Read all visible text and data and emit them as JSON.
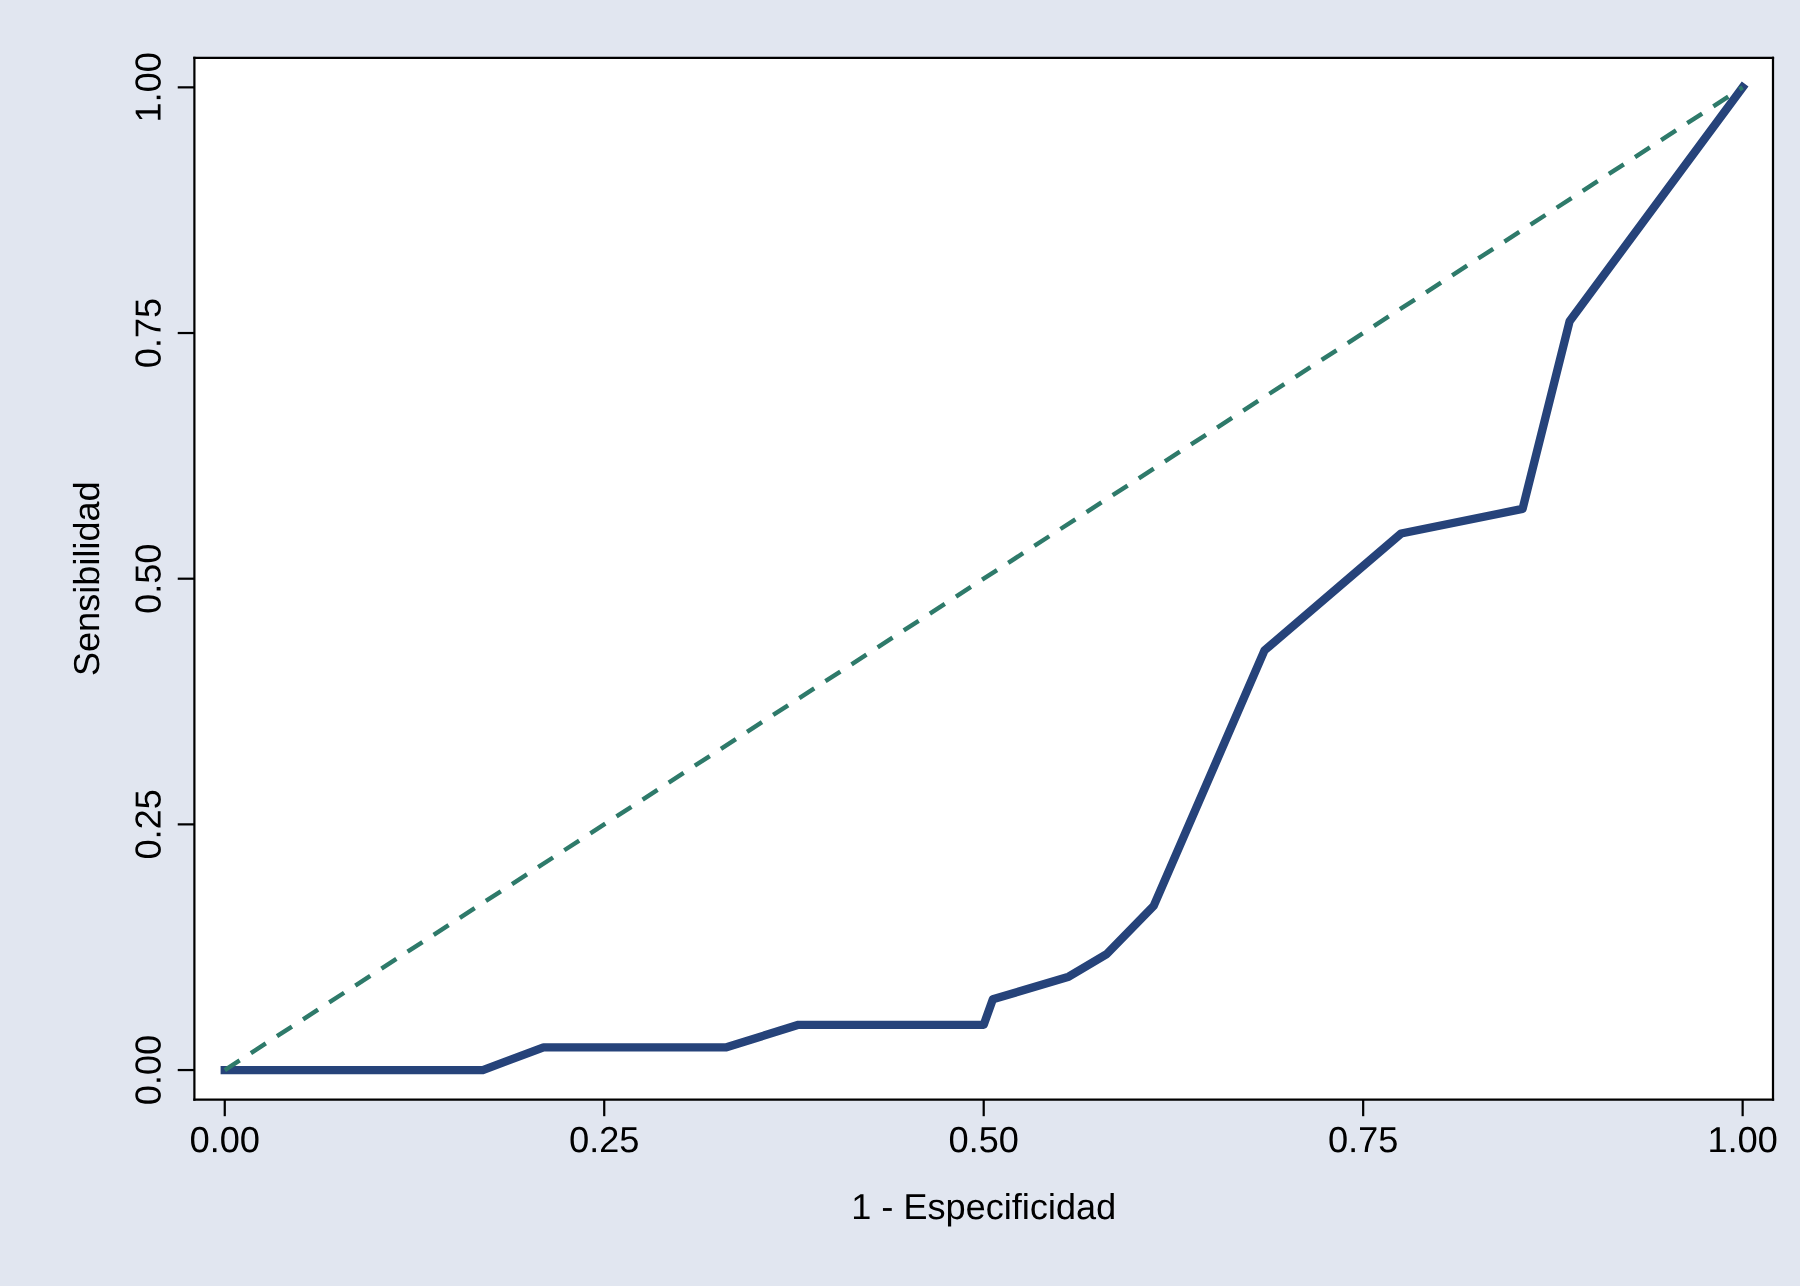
{
  "chart_data": {
    "type": "line",
    "xlabel": "1 - Especificidad",
    "ylabel": "Sensibilidad",
    "xlim": [
      -0.02,
      1.02
    ],
    "ylim": [
      -0.03,
      1.03
    ],
    "xticks": [
      {
        "value": 0,
        "label": "0.00"
      },
      {
        "value": 0.25,
        "label": "0.25"
      },
      {
        "value": 0.5,
        "label": "0.50"
      },
      {
        "value": 0.75,
        "label": "0.75"
      },
      {
        "value": 1,
        "label": "1.00"
      }
    ],
    "yticks": [
      {
        "value": 0,
        "label": "0.00"
      },
      {
        "value": 0.25,
        "label": "0.25"
      },
      {
        "value": 0.5,
        "label": "0.50"
      },
      {
        "value": 0.75,
        "label": "0.75"
      },
      {
        "value": 1,
        "label": "1.00"
      }
    ],
    "grid": false,
    "series": [
      {
        "color": "#26437a",
        "line_style": "solid",
        "x": [
          0,
          0.17,
          0.21,
          0.33,
          0.378,
          0.5,
          0.506,
          0.556,
          0.581,
          0.612,
          0.685,
          0.775,
          0.855,
          0.886,
          1
        ],
        "values": [
          0,
          0,
          0.023,
          0.023,
          0.046,
          0.046,
          0.072,
          0.095,
          0.118,
          0.167,
          0.427,
          0.546,
          0.571,
          0.762,
          1
        ]
      },
      {
        "color": "#2e7a6a",
        "line_style": "dashed",
        "x": [
          0,
          1
        ],
        "values": [
          0,
          1
        ]
      }
    ]
  }
}
